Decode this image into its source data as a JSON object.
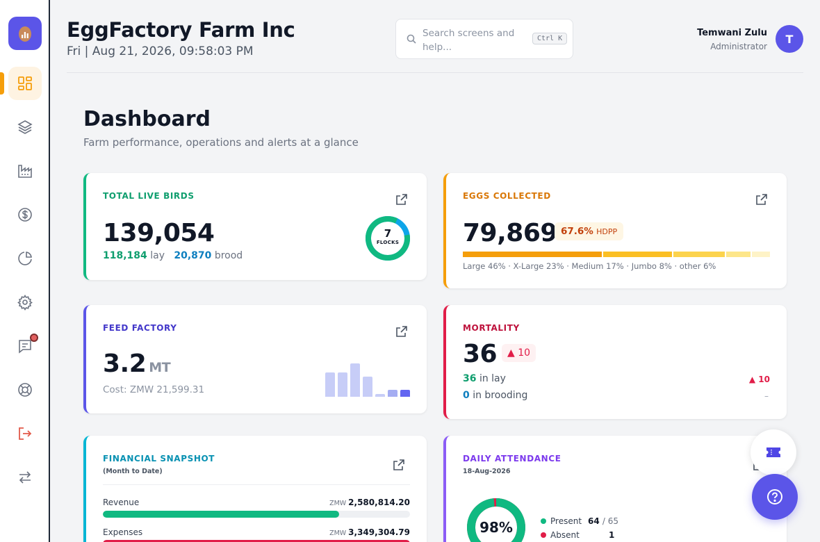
{
  "header": {
    "title": "EggFactory Farm Inc",
    "datetime": "Fri | Aug 21, 2026, 09:58:03 PM",
    "search_placeholder": "Search screens and help...",
    "search_shortcut": "Ctrl K",
    "user_name": "Temwani Zulu",
    "user_role": "Administrator",
    "avatar_initial": "T"
  },
  "sidebar": {
    "items": [
      {
        "icon": "dashboard-grid-icon",
        "active": true
      },
      {
        "icon": "layers-icon"
      },
      {
        "icon": "factory-icon"
      },
      {
        "icon": "dollar-circle-icon"
      },
      {
        "icon": "pie-chart-icon"
      },
      {
        "icon": "gear-icon"
      },
      {
        "icon": "message-icon",
        "has_notification": true
      },
      {
        "icon": "lifebuoy-icon"
      },
      {
        "icon": "logout-icon"
      },
      {
        "icon": "switch-arrows-icon"
      }
    ]
  },
  "page": {
    "title": "Dashboard",
    "subtitle": "Farm performance, operations and alerts at a glance"
  },
  "cards": {
    "live_birds": {
      "label": "TOTAL LIVE BIRDS",
      "total": "139,054",
      "lay_value": "118,184",
      "lay_label": "lay",
      "brood_value": "20,870",
      "brood_label": "brood",
      "flocks_count": "7",
      "flocks_label": "FLOCKS",
      "lay_fraction": 0.85
    },
    "eggs": {
      "label": "EGGS COLLECTED",
      "total": "79,869",
      "hdpp_value": "67.6%",
      "hdpp_label": "HDPP",
      "breakdown": "Large 46% · X-Large 23% · Medium 17% · Jumbo 8% · other 6%",
      "segments": [
        {
          "name": "Large",
          "percent": 46,
          "color": "#f59e0b"
        },
        {
          "name": "X-Large",
          "percent": 23,
          "color": "#fbbf24"
        },
        {
          "name": "Medium",
          "percent": 17,
          "color": "#fcd34d"
        },
        {
          "name": "Jumbo",
          "percent": 8,
          "color": "#fde68a"
        },
        {
          "name": "other",
          "percent": 6,
          "color": "#fef3c7"
        }
      ]
    },
    "feed": {
      "label": "FEED FACTORY",
      "value": "3.2",
      "unit": "MT",
      "cost": "Cost: ZMW 21,599.31",
      "bar_levels": [
        0.62,
        0.62,
        0.85,
        0.52,
        0.08,
        0.18,
        0.18
      ]
    },
    "mortality": {
      "label": "MORTALITY",
      "total": "36",
      "delta": "▲ 10",
      "lay_value": "36",
      "lay_label": "in lay",
      "lay_delta": "▲ 10",
      "brood_value": "0",
      "brood_label": "in brooding",
      "brood_delta": "–"
    },
    "financial": {
      "label": "FINANCIAL SNAPSHOT",
      "sublabel": "(Month to Date)",
      "revenue_label": "Revenue",
      "revenue_currency": "ZMW",
      "revenue_value": "2,580,814.20",
      "revenue_fraction": 0.77,
      "expenses_label": "Expenses",
      "expenses_currency": "ZMW",
      "expenses_value": "3,349,304.79",
      "expenses_fraction": 1.0
    },
    "attendance": {
      "label": "DAILY ATTENDANCE",
      "date": "18-Aug-2026",
      "percent": "98%",
      "present_fraction": 0.985,
      "present_label": "Present",
      "present_value": "64",
      "present_total": "/ 65",
      "absent_label": "Absent",
      "absent_value": "1"
    }
  },
  "colors": {
    "brand": "#5b55e8",
    "green": "#10b981",
    "amber": "#f59e0b",
    "red": "#e11d48",
    "cyan": "#06b6d4",
    "violet": "#8b5cf6",
    "blue": "#0e7fbf"
  }
}
